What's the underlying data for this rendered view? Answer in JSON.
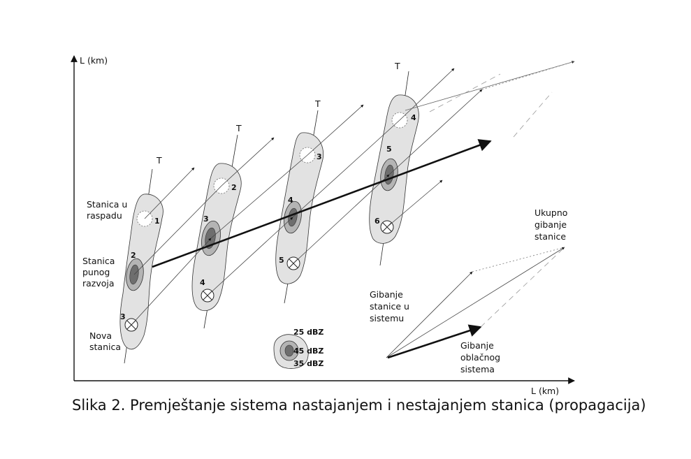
{
  "axes": {
    "y_label": "L  (km)",
    "x_label": "L  (km)"
  },
  "time_labels": [
    "T",
    "T",
    "T",
    "T"
  ],
  "cell_labels": {
    "decaying": [
      "Stanica u",
      "raspadu"
    ],
    "mature": [
      "Stanica",
      "punog",
      "razvoja"
    ],
    "new": [
      "Nova",
      "stanica"
    ]
  },
  "cell_numbers": {
    "t1": [
      "1",
      "2",
      "3"
    ],
    "t2": [
      "2",
      "3",
      "4"
    ],
    "t3": [
      "3",
      "4",
      "5"
    ],
    "t4": [
      "4",
      "5",
      "6"
    ]
  },
  "legend": {
    "outer": "25 dBZ",
    "core": "45 dBZ",
    "middle": "35 dBZ"
  },
  "vectors": {
    "total": [
      "Ukupno",
      "gibanje",
      "stanice"
    ],
    "cell": [
      "Gibanje",
      "stanice u",
      "sistemu"
    ],
    "system": [
      "Gibanje",
      "oblačnog",
      "sistema"
    ]
  },
  "colors": {
    "outer": "#e2e2e2",
    "middle": "#b4b4b4",
    "core": "#6e6e6e"
  },
  "caption": "Slika 2. Premještanje sistema nastajanjem i nestajanjem stanica (propagacija)"
}
